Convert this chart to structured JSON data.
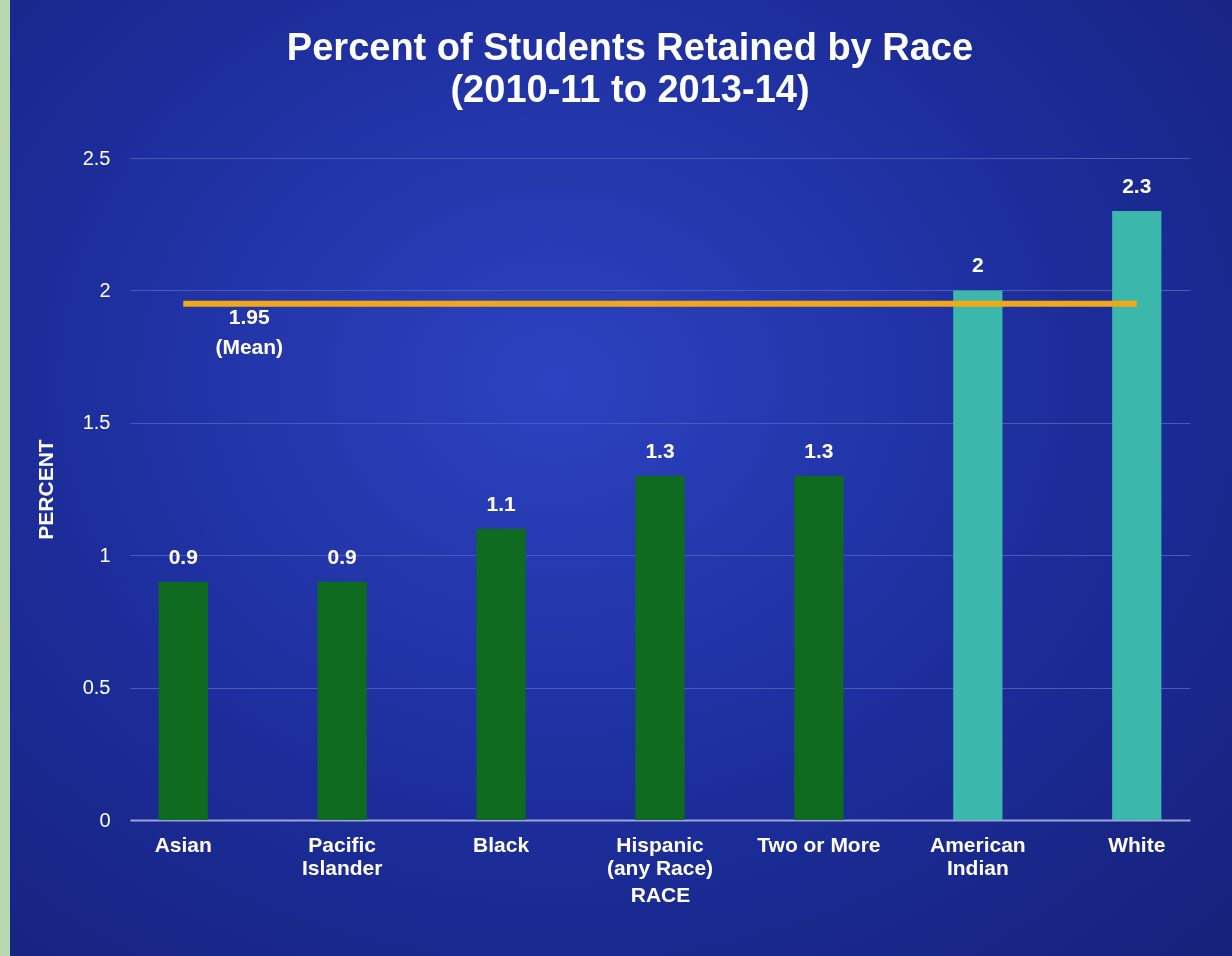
{
  "chart_data": {
    "type": "bar",
    "title": "Percent of Students Retained by Race",
    "subtitle": "(2010-11 to 2013-14)",
    "xlabel": "RACE",
    "ylabel": "PERCENT",
    "categories": [
      "Asian",
      "Pacific\nIslander",
      "Black",
      "Hispanic\n(any Race)",
      "Two or More",
      "American\nIndian",
      "White"
    ],
    "values": [
      0.9,
      0.9,
      1.1,
      1.3,
      1.3,
      2,
      2.3
    ],
    "colors": [
      "#0f6b1f",
      "#0f6b1f",
      "#0f6b1f",
      "#0f6b1f",
      "#0f6b1f",
      "#3bb8ab",
      "#3bb8ab"
    ],
    "ylim": [
      0,
      2.5
    ],
    "yticks": [
      0,
      0.5,
      1,
      1.5,
      2,
      2.5
    ],
    "grid": "y",
    "data_labels": true,
    "ref_lines": [
      {
        "axis": "y",
        "value": 1.95,
        "label": "1.95\n(Mean)",
        "color": "#f0a818"
      }
    ]
  }
}
